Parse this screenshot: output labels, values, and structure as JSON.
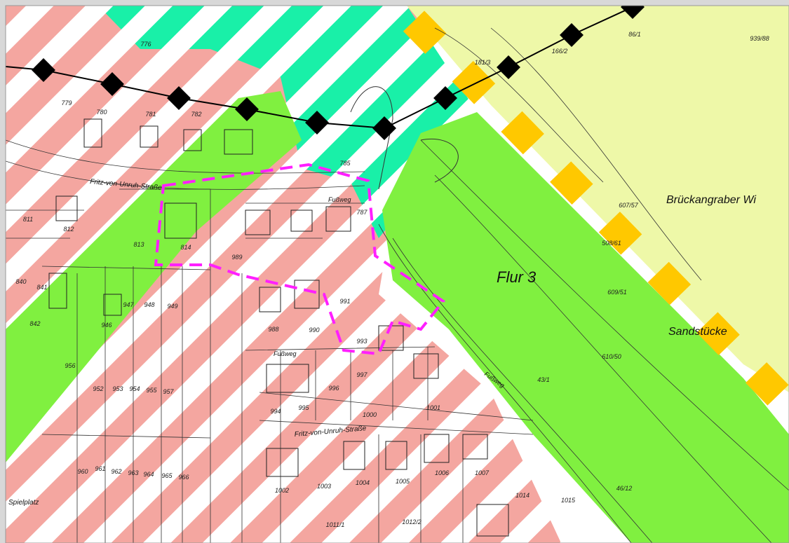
{
  "labels": {
    "flur": "Flur 3",
    "field_name": "Brückangraber Wi",
    "sandstuecke": "Sandstücke",
    "street_upper": "Fritz-von-Unruh-Straße",
    "street_lower": "Fritz-von-Unruh-Straße",
    "footpath_1": "Fußweg",
    "footpath_2": "Fußweg",
    "footpath_3": "Fußweg",
    "playground": "Spielplatz"
  },
  "parcels": [
    "776",
    "779",
    "780",
    "781",
    "782",
    "785",
    "787",
    "811",
    "812",
    "813",
    "814",
    "840",
    "841",
    "842",
    "946",
    "947",
    "948",
    "949",
    "952",
    "953",
    "954",
    "955",
    "956",
    "957",
    "960",
    "961",
    "962",
    "963",
    "964",
    "965",
    "966",
    "988",
    "989",
    "990",
    "991",
    "993",
    "994",
    "995",
    "996",
    "997",
    "1000",
    "1001",
    "1002",
    "1003",
    "1004",
    "1005",
    "1006",
    "1007",
    "1014",
    "1015",
    "607/57",
    "508/61",
    "609/51",
    "610/50",
    "43/1",
    "46/12",
    "166/2",
    "181/3",
    "86/1",
    "939/88",
    "1011/1",
    "1012/2"
  ]
}
